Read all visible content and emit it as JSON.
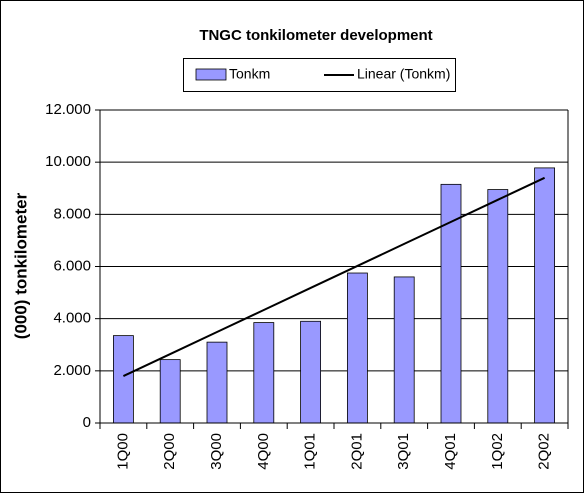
{
  "chart_data": {
    "type": "bar",
    "title": "TNGC tonkilometer development",
    "ylabel": "(000) tonkilometer",
    "categories": [
      "1Q00",
      "2Q00",
      "3Q00",
      "4Q00",
      "1Q01",
      "2Q01",
      "3Q01",
      "4Q01",
      "1Q02",
      "2Q02"
    ],
    "series": [
      {
        "name": "Tonkm",
        "type": "bar",
        "color": "#9999ff",
        "values": [
          3350,
          2430,
          3100,
          3850,
          3900,
          5750,
          5600,
          9150,
          8950,
          9780
        ]
      },
      {
        "name": "Linear (Tonkm)",
        "type": "line",
        "color": "#000000",
        "values": [
          1800,
          2644,
          3489,
          4333,
          5178,
          6022,
          6867,
          7711,
          8556,
          9400
        ]
      }
    ],
    "ylim": [
      0,
      12000
    ],
    "yticks": [
      0,
      {
        "value": 2000,
        "label": "2.000"
      },
      {
        "value": 4000,
        "label": "4.000"
      },
      {
        "value": 6000,
        "label": "6.000"
      },
      {
        "value": 8000,
        "label": "8.000"
      },
      {
        "value": 10000,
        "label": "10.000"
      },
      {
        "value": 12000,
        "label": "12.000"
      }
    ],
    "grid": true
  }
}
